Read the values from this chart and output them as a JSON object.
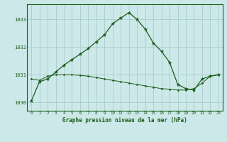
{
  "title": "Graphe pression niveau de la mer (hPa)",
  "bg_color": "#cce8e8",
  "grid_color": "#aacccc",
  "line_color": "#1a5c1a",
  "xlim": [
    -0.5,
    23.5
  ],
  "ylim": [
    1029.7,
    1033.55
  ],
  "yticks": [
    1030,
    1031,
    1032,
    1033
  ],
  "ytick_labels": [
    "1030",
    "1031",
    "1032",
    "1033"
  ],
  "xtick_labels": [
    "0",
    "1",
    "2",
    "3",
    "4",
    "5",
    "6",
    "7",
    "8",
    "9",
    "10",
    "11",
    "12",
    "13",
    "14",
    "15",
    "16",
    "17",
    "18",
    "19",
    "20",
    "21",
    "22",
    "23"
  ],
  "series1_x": [
    0,
    1,
    2,
    3,
    4,
    5,
    6,
    7,
    8,
    9,
    10,
    11,
    12,
    13,
    14,
    15,
    16,
    17,
    18,
    19,
    20,
    21,
    22,
    23
  ],
  "series1_y": [
    1030.05,
    1030.75,
    1030.85,
    1031.1,
    1031.35,
    1031.55,
    1031.75,
    1031.95,
    1032.2,
    1032.45,
    1032.85,
    1033.05,
    1033.25,
    1033.0,
    1032.65,
    1032.15,
    1031.85,
    1031.45,
    1030.65,
    1030.5,
    1030.45,
    1030.85,
    1030.95,
    1031.0
  ],
  "series2_x": [
    0,
    1,
    2,
    3,
    4,
    5,
    6,
    7,
    8,
    9,
    10,
    11,
    12,
    13,
    14,
    15,
    16,
    17,
    18,
    19,
    20,
    21,
    22,
    23
  ],
  "series2_y": [
    1030.85,
    1030.8,
    1030.95,
    1031.0,
    1031.0,
    1031.0,
    1030.98,
    1030.95,
    1030.9,
    1030.85,
    1030.8,
    1030.75,
    1030.7,
    1030.65,
    1030.6,
    1030.55,
    1030.5,
    1030.48,
    1030.45,
    1030.45,
    1030.5,
    1030.7,
    1030.95,
    1031.0
  ]
}
